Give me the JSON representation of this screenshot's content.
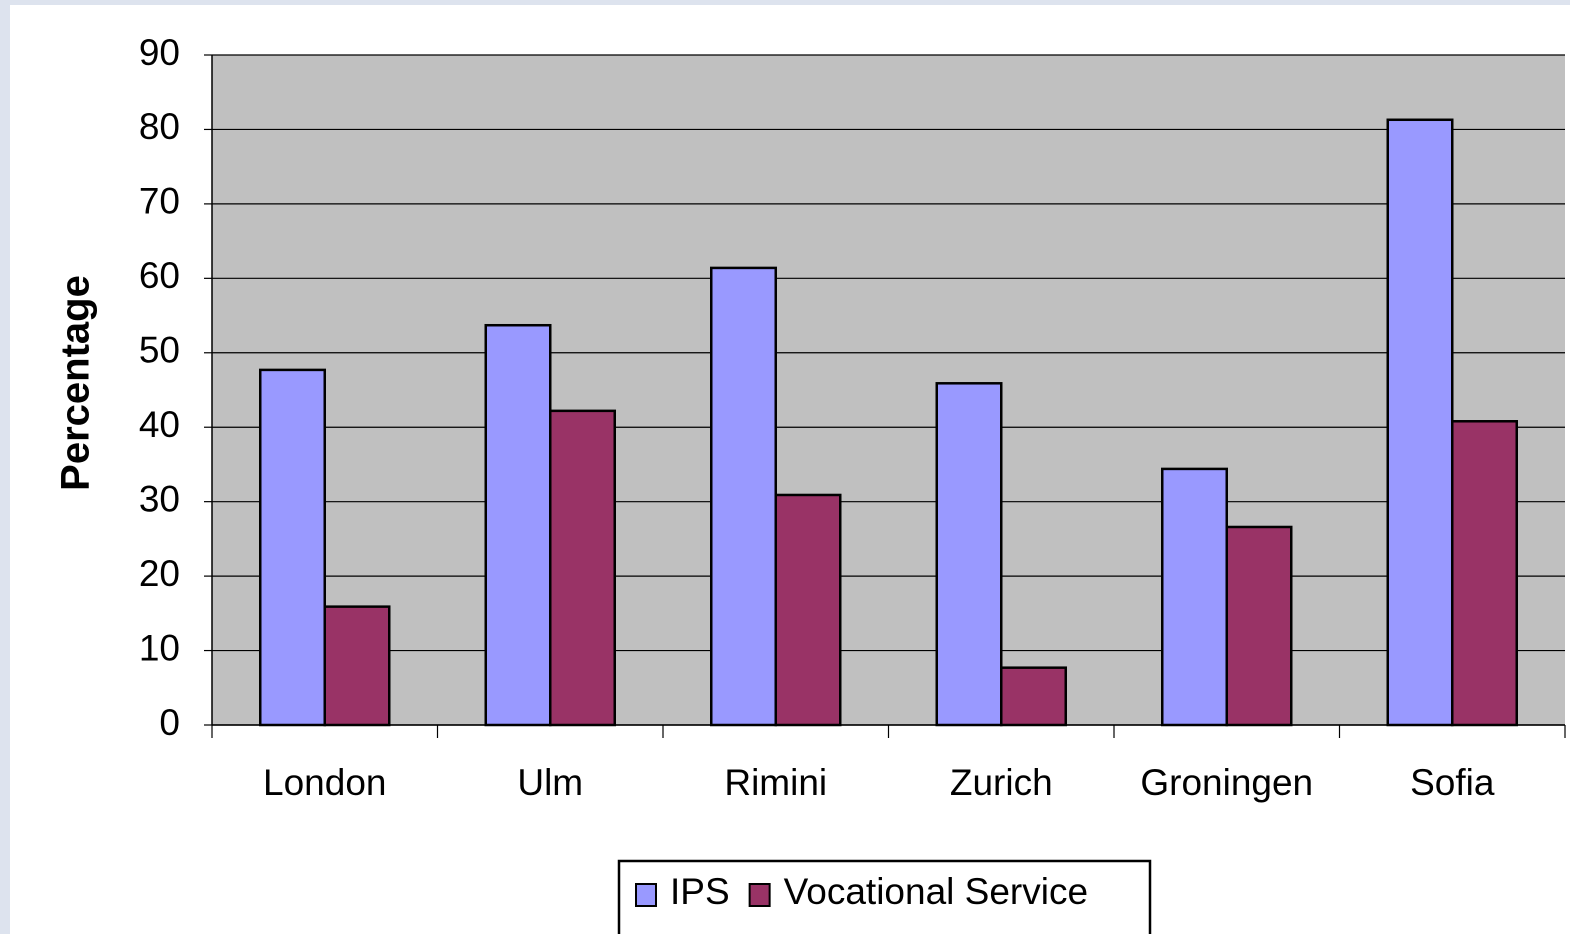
{
  "chart_data": {
    "type": "bar",
    "y_label": "Percentage",
    "categories": [
      "London",
      "Ulm",
      "Rimini",
      "Zurich",
      "Groningen",
      "Sofia"
    ],
    "series": [
      {
        "name": "IPS",
        "color": "#9999ff",
        "values": [
          47.7,
          53.7,
          61.4,
          45.9,
          34.4,
          81.3
        ]
      },
      {
        "name": "Vocational Service",
        "color": "#993366",
        "values": [
          15.9,
          42.2,
          30.9,
          7.7,
          26.6,
          40.8
        ]
      }
    ],
    "ylim": [
      0,
      90
    ],
    "yticks": [
      0,
      10,
      20,
      30,
      40,
      50,
      60,
      70,
      80,
      90
    ],
    "grid": true,
    "legend": "bottom"
  }
}
